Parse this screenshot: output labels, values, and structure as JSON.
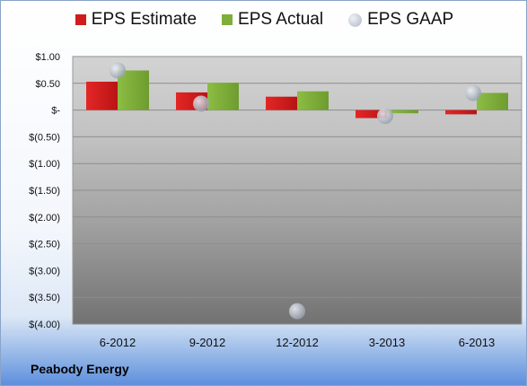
{
  "chart_data": {
    "type": "bar",
    "categories": [
      "6-2012",
      "9-2012",
      "12-2012",
      "3-2013",
      "6-2013"
    ],
    "series": [
      {
        "name": "EPS Estimate",
        "kind": "bar",
        "color": "#d01c1c",
        "values": [
          0.53,
          0.33,
          0.25,
          -0.15,
          -0.08
        ]
      },
      {
        "name": "EPS Actual",
        "kind": "bar",
        "color": "#7fae3a",
        "values": [
          0.74,
          0.51,
          0.35,
          -0.06,
          0.32
        ]
      },
      {
        "name": "EPS GAAP",
        "kind": "marker",
        "color": "#b8bec8",
        "values": [
          0.74,
          0.12,
          -3.76,
          -0.11,
          0.32
        ]
      }
    ],
    "yticks": [
      "$1.00",
      "$0.50",
      "$-",
      "$(0.50)",
      "$(1.00)",
      "$(1.50)",
      "$(2.00)",
      "$(2.50)",
      "$(3.00)",
      "$(3.50)",
      "$(4.00)"
    ],
    "ylim": [
      -4,
      1
    ],
    "grid": true,
    "legend": "top"
  },
  "footer": {
    "company": "Peabody Energy"
  }
}
